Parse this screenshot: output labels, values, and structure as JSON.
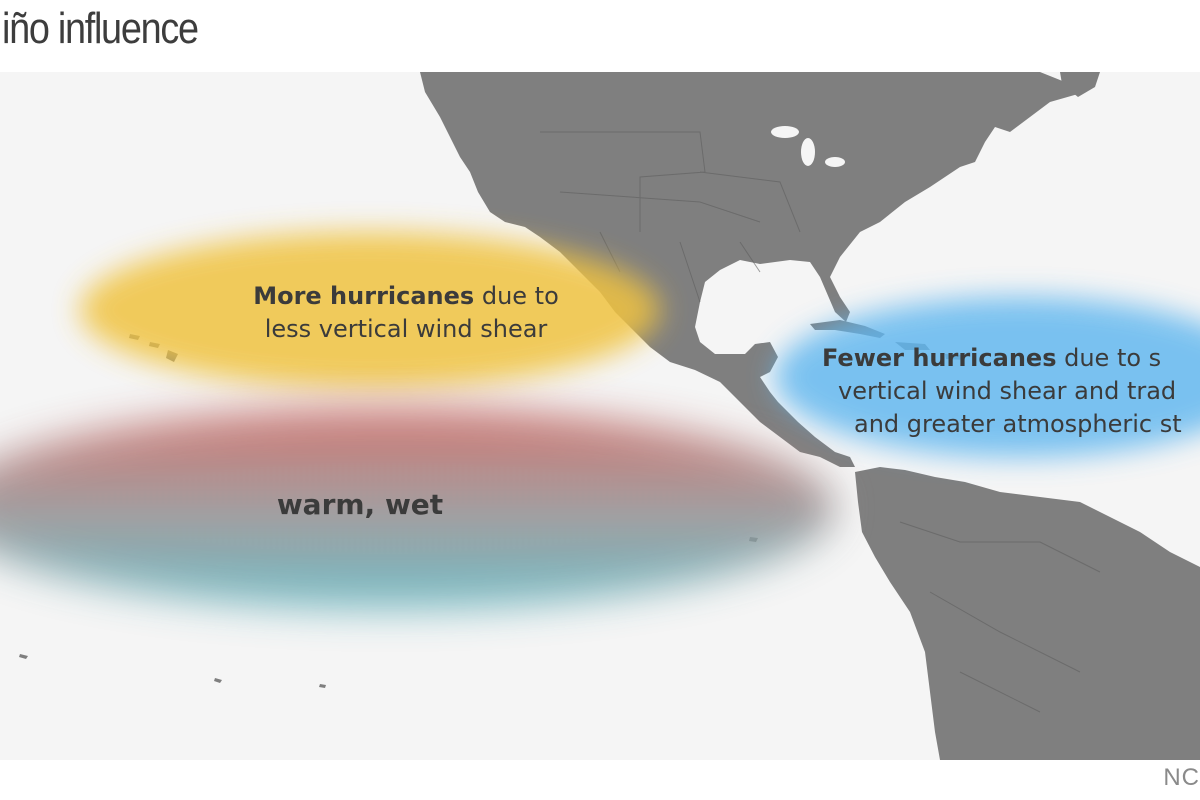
{
  "title": "iño influence",
  "regions": {
    "yellow": {
      "bold": "More hurricanes",
      "rest": " due to",
      "line2": "less vertical wind shear",
      "color": "#f0c13a"
    },
    "blue": {
      "bold": "Fewer hurricanes",
      "rest": " due to s",
      "line2": "vertical wind shear and trad",
      "line3": "and greater atmospheric st",
      "color": "#5ab4ef"
    },
    "warm": {
      "label": "warm, wet",
      "color_top": "#c9605a",
      "color_bottom": "#5ab2bd"
    }
  },
  "land_color": "#7f7f7f",
  "credit": "NC"
}
